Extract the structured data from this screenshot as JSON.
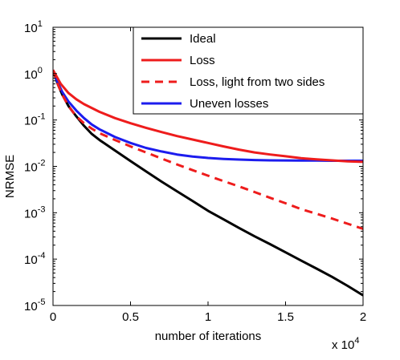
{
  "chart_data": {
    "type": "line",
    "xlabel": "number of iterations",
    "ylabel": "NRMSE",
    "x_multiplier_label": "x 10",
    "x_multiplier_exp": "4",
    "x_scale": 10000,
    "xlim": [
      0,
      20000
    ],
    "ylim": [
      1e-05,
      10
    ],
    "yscale": "log",
    "grid": false,
    "legend_position": "top-right",
    "x_ticks": [
      {
        "value": 0,
        "label": "0"
      },
      {
        "value": 5000,
        "label": "0.5"
      },
      {
        "value": 10000,
        "label": "1"
      },
      {
        "value": 15000,
        "label": "1.5"
      },
      {
        "value": 20000,
        "label": "2"
      }
    ],
    "y_ticks": [
      {
        "value": 1e-05,
        "base": "10",
        "exp": "-5"
      },
      {
        "value": 0.0001,
        "base": "10",
        "exp": "-4"
      },
      {
        "value": 0.001,
        "base": "10",
        "exp": "-3"
      },
      {
        "value": 0.01,
        "base": "10",
        "exp": "-2"
      },
      {
        "value": 0.1,
        "base": "10",
        "exp": "-1"
      },
      {
        "value": 1,
        "base": "10",
        "exp": "0"
      },
      {
        "value": 10,
        "base": "10",
        "exp": "1"
      }
    ],
    "series": [
      {
        "name": "Ideal",
        "color": "#000000",
        "dash": "solid",
        "points": [
          [
            0,
            1.2
          ],
          [
            300,
            0.6
          ],
          [
            600,
            0.35
          ],
          [
            1000,
            0.2
          ],
          [
            1500,
            0.12
          ],
          [
            2000,
            0.075
          ],
          [
            2500,
            0.05
          ],
          [
            3000,
            0.037
          ],
          [
            4000,
            0.022
          ],
          [
            5000,
            0.013
          ],
          [
            6000,
            0.0078
          ],
          [
            7000,
            0.0047
          ],
          [
            8000,
            0.0029
          ],
          [
            9000,
            0.0018
          ],
          [
            10000,
            0.0011
          ],
          [
            11000,
            0.00072
          ],
          [
            12000,
            0.00047
          ],
          [
            13000,
            0.00031
          ],
          [
            14000,
            0.00021
          ],
          [
            15000,
            0.00014
          ],
          [
            16000,
            9.35e-05
          ],
          [
            17000,
            6.25e-05
          ],
          [
            18000,
            4.15e-05
          ],
          [
            19000,
            2.65e-05
          ],
          [
            20000,
            1.65e-05
          ]
        ]
      },
      {
        "name": "Loss",
        "color": "#ee1c1c",
        "dash": "solid",
        "points": [
          [
            0,
            1.2
          ],
          [
            500,
            0.6
          ],
          [
            1000,
            0.38
          ],
          [
            1500,
            0.28
          ],
          [
            2000,
            0.22
          ],
          [
            3000,
            0.15
          ],
          [
            4000,
            0.11
          ],
          [
            5000,
            0.085
          ],
          [
            6000,
            0.068
          ],
          [
            7000,
            0.055
          ],
          [
            8000,
            0.045
          ],
          [
            9000,
            0.038
          ],
          [
            10000,
            0.032
          ],
          [
            11000,
            0.027
          ],
          [
            12000,
            0.023
          ],
          [
            13000,
            0.02
          ],
          [
            14000,
            0.018
          ],
          [
            15000,
            0.0165
          ],
          [
            16000,
            0.015
          ],
          [
            17000,
            0.0142
          ],
          [
            18000,
            0.0135
          ],
          [
            19000,
            0.0128
          ],
          [
            20000,
            0.0125
          ]
        ]
      },
      {
        "name": "Loss, light from two sides",
        "color": "#ee1c1c",
        "dash": "dashed",
        "points": [
          [
            0,
            1.2
          ],
          [
            300,
            0.6
          ],
          [
            600,
            0.35
          ],
          [
            1000,
            0.2
          ],
          [
            1500,
            0.12
          ],
          [
            2000,
            0.085
          ],
          [
            2500,
            0.065
          ],
          [
            3000,
            0.052
          ],
          [
            4000,
            0.037
          ],
          [
            5000,
            0.027
          ],
          [
            6000,
            0.02
          ],
          [
            7000,
            0.0148
          ],
          [
            8000,
            0.011
          ],
          [
            9000,
            0.0083
          ],
          [
            10000,
            0.0063
          ],
          [
            11000,
            0.0048
          ],
          [
            12000,
            0.0037
          ],
          [
            13000,
            0.0028
          ],
          [
            14000,
            0.0021
          ],
          [
            15000,
            0.0016
          ],
          [
            16000,
            0.0012
          ],
          [
            17000,
            0.00095
          ],
          [
            18000,
            0.00075
          ],
          [
            19000,
            0.00058
          ],
          [
            20000,
            0.00045
          ]
        ]
      },
      {
        "name": "Uneven losses",
        "color": "#1c1cee",
        "dash": "solid",
        "points": [
          [
            0,
            1.2
          ],
          [
            300,
            0.65
          ],
          [
            600,
            0.4
          ],
          [
            1000,
            0.25
          ],
          [
            1500,
            0.16
          ],
          [
            2000,
            0.11
          ],
          [
            2500,
            0.08
          ],
          [
            3000,
            0.063
          ],
          [
            4000,
            0.043
          ],
          [
            5000,
            0.032
          ],
          [
            6000,
            0.025
          ],
          [
            7000,
            0.021
          ],
          [
            8000,
            0.018
          ],
          [
            9000,
            0.0163
          ],
          [
            10000,
            0.0152
          ],
          [
            11000,
            0.0145
          ],
          [
            12000,
            0.014
          ],
          [
            13000,
            0.0137
          ],
          [
            14000,
            0.0135
          ],
          [
            15000,
            0.0134
          ],
          [
            16000,
            0.0133
          ],
          [
            17000,
            0.0133
          ],
          [
            18000,
            0.0132
          ],
          [
            19000,
            0.0132
          ],
          [
            20000,
            0.0132
          ]
        ]
      }
    ]
  }
}
